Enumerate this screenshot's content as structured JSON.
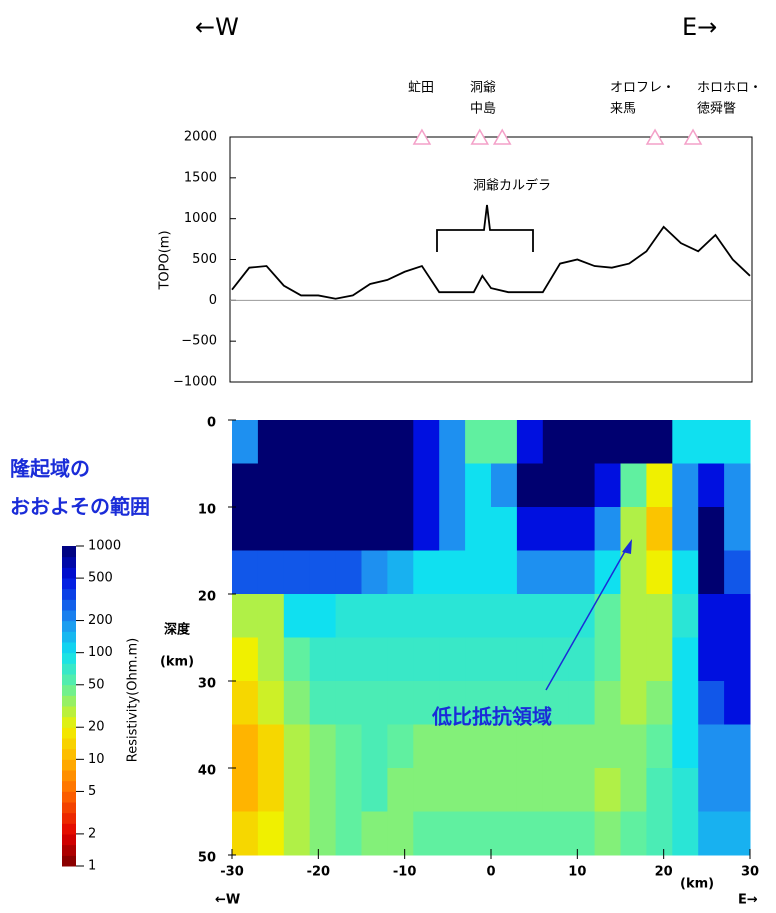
{
  "chart_data": [
    {
      "type": "line",
      "y_label": "TOPO(m)",
      "x": [
        -30,
        -28,
        -26,
        -24,
        -22,
        -20,
        -18,
        -16,
        -14,
        -12,
        -10,
        -8,
        -6,
        -4,
        -2,
        -1,
        0,
        2,
        4,
        6,
        8,
        10,
        12,
        14,
        16,
        18,
        20,
        22,
        24,
        26,
        28,
        30
      ],
      "values": [
        130,
        400,
        420,
        180,
        60,
        60,
        20,
        60,
        200,
        250,
        350,
        420,
        100,
        100,
        100,
        300,
        150,
        100,
        100,
        100,
        450,
        500,
        420,
        400,
        450,
        600,
        900,
        700,
        600,
        800,
        500,
        300
      ],
      "color": "#000000",
      "xlim": [
        -30,
        30
      ],
      "ylim": [
        -1000,
        2000
      ],
      "yticks": [
        {
          "value": -1000,
          "label": "−1000"
        },
        {
          "value": -500,
          "label": "−500"
        },
        0,
        500,
        1000,
        1500,
        2000
      ],
      "zero_line": true,
      "volcano_x": [
        -8,
        -1.3,
        1.3,
        19,
        23.4
      ],
      "volcano_color": "#f4a0c8",
      "volcano_labels": [
        [
          "虻田"
        ],
        [
          "洞爺",
          "中島"
        ],
        [
          "オロフレ・",
          "来馬"
        ],
        [
          "ホロホロ・",
          "徳舜瞥"
        ]
      ],
      "caldera_label": "洞爺カルデラ",
      "west": "←W",
      "east": "E→"
    },
    {
      "type": "heatmap",
      "xlim": [
        -30,
        30
      ],
      "ylim": [
        0,
        50
      ],
      "xticks": [
        -30,
        -20,
        -10,
        0,
        10,
        20,
        30
      ],
      "yticks": [
        0,
        10,
        20,
        30,
        40,
        50
      ],
      "y_label": [
        "深度",
        "(km)"
      ],
      "x_unit": "(km)",
      "west": "←W",
      "east": "E→",
      "z": [
        [
          200,
          1000,
          1000,
          1000,
          1000,
          1000,
          1000,
          500,
          200,
          50,
          50,
          500,
          1000,
          1000,
          1000,
          1000,
          1000,
          100,
          100,
          100
        ],
        [
          1000,
          1000,
          1000,
          1000,
          1000,
          1000,
          1000,
          500,
          200,
          100,
          200,
          1000,
          1000,
          1000,
          500,
          50,
          20,
          200,
          500,
          200
        ],
        [
          1000,
          1000,
          1000,
          1000,
          1000,
          1000,
          1000,
          500,
          200,
          100,
          100,
          500,
          500,
          500,
          200,
          30,
          12,
          200,
          1000,
          200
        ],
        [
          300,
          300,
          300,
          300,
          300,
          200,
          150,
          100,
          100,
          100,
          100,
          200,
          200,
          200,
          100,
          30,
          20,
          100,
          1000,
          300
        ],
        [
          30,
          30,
          100,
          100,
          80,
          80,
          80,
          80,
          80,
          80,
          80,
          80,
          80,
          80,
          50,
          30,
          30,
          80,
          500,
          500
        ],
        [
          20,
          30,
          50,
          70,
          70,
          70,
          70,
          70,
          70,
          70,
          70,
          70,
          70,
          70,
          50,
          30,
          30,
          100,
          500,
          500
        ],
        [
          15,
          25,
          40,
          60,
          60,
          60,
          60,
          60,
          60,
          60,
          60,
          60,
          60,
          60,
          40,
          30,
          40,
          100,
          300,
          500
        ],
        [
          10,
          15,
          30,
          40,
          50,
          60,
          50,
          40,
          40,
          40,
          40,
          40,
          40,
          40,
          40,
          40,
          50,
          100,
          200,
          200
        ],
        [
          10,
          15,
          30,
          40,
          50,
          60,
          40,
          40,
          40,
          40,
          40,
          40,
          40,
          40,
          30,
          40,
          60,
          80,
          200,
          200
        ],
        [
          15,
          20,
          30,
          40,
          50,
          40,
          40,
          50,
          50,
          50,
          50,
          50,
          50,
          50,
          40,
          50,
          60,
          80,
          150,
          150
        ]
      ],
      "colorbar": {
        "label": "Resistivity(Ohm.m)",
        "log": true,
        "ticks": [
          1,
          2,
          5,
          10,
          20,
          50,
          100,
          200,
          500,
          1000
        ],
        "colors": [
          "#7a0000",
          "#e00000",
          "#ff6a00",
          "#ffb400",
          "#f0f000",
          "#60f0a0",
          "#10e0f0",
          "#1e90f0",
          "#0010e0",
          "#000070"
        ]
      },
      "uplift_label": [
        "隆起域の",
        "おおよその範囲"
      ],
      "low_res_label": "低比抵抗領域",
      "annotation_color": "#1a2cd8"
    }
  ]
}
